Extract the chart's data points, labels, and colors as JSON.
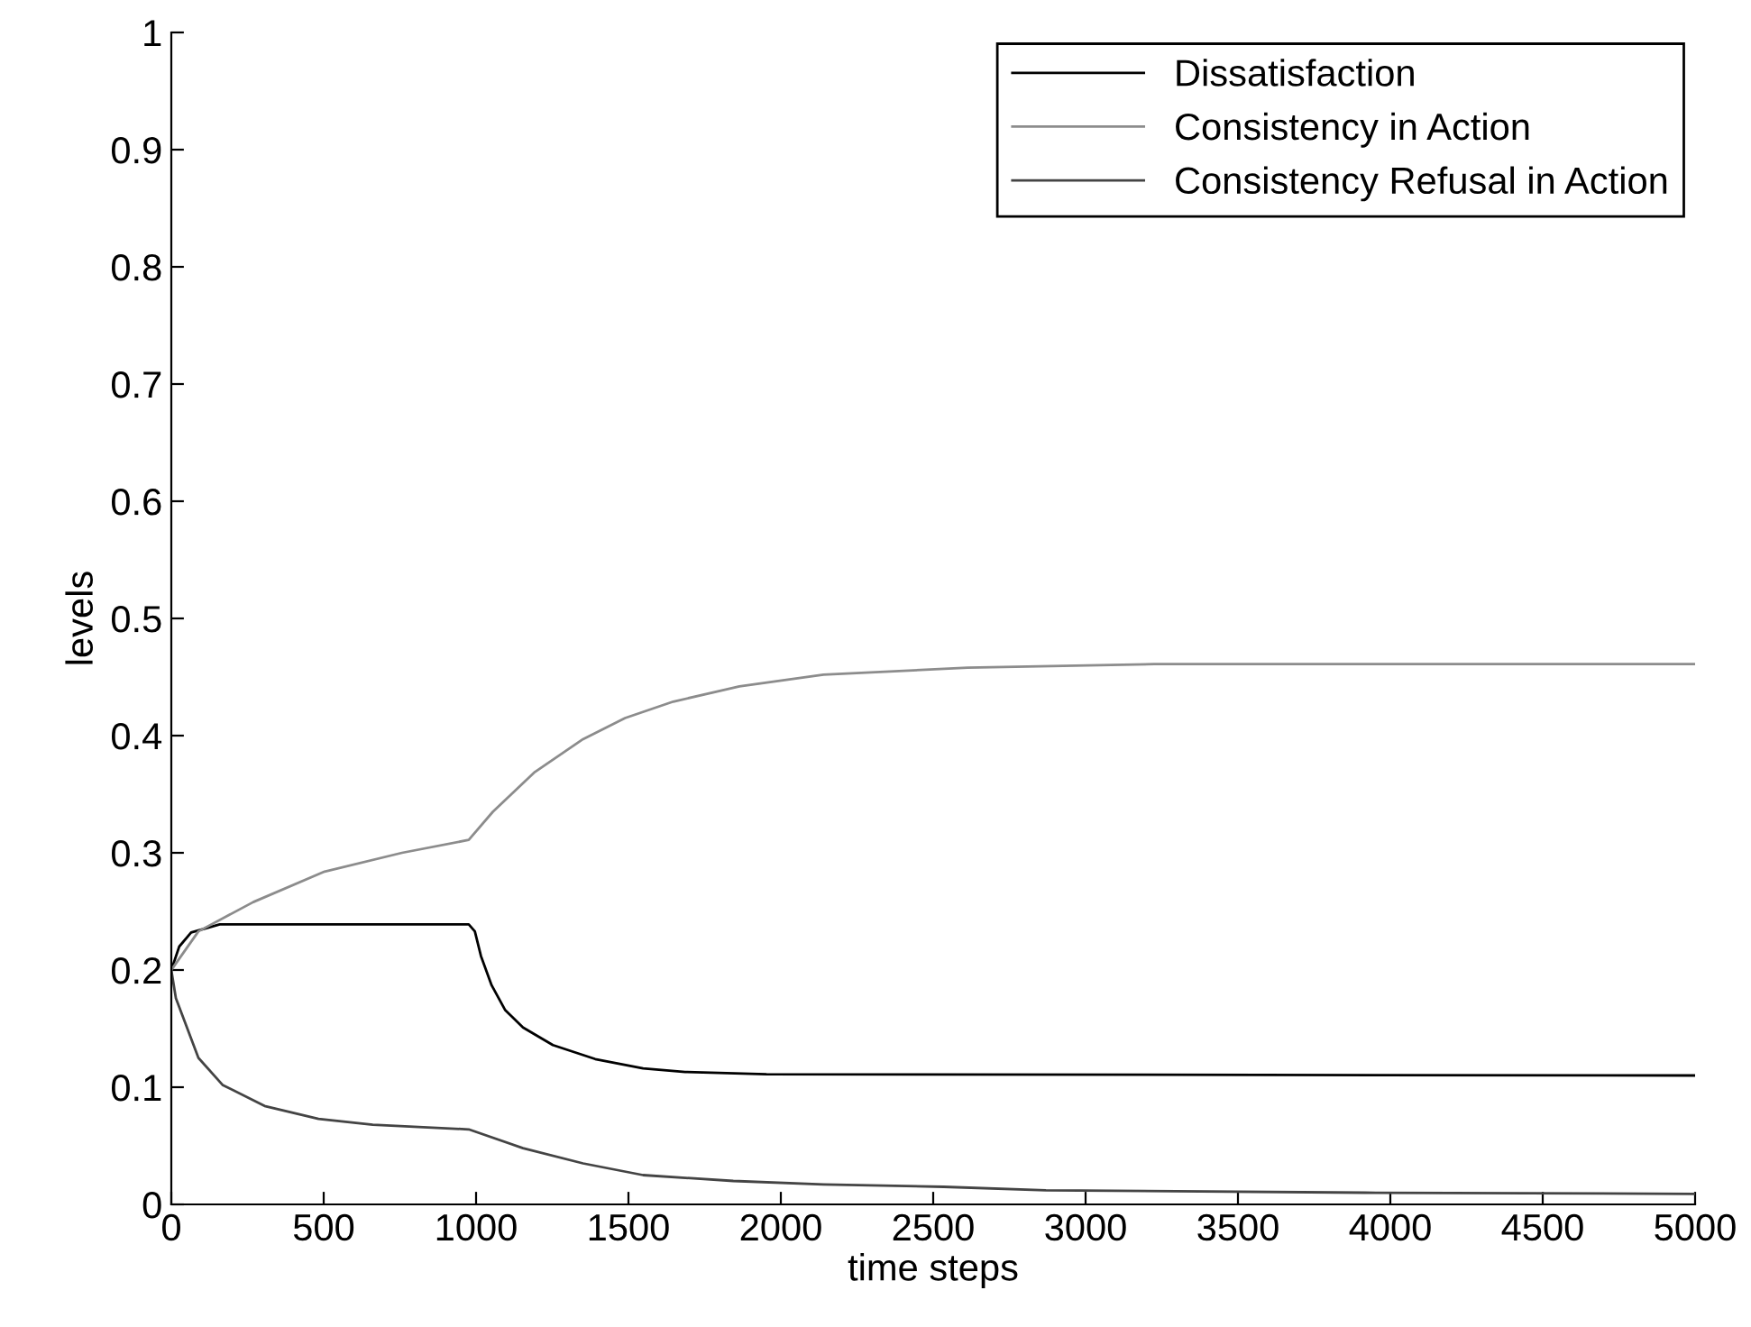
{
  "chart_data": {
    "type": "line",
    "xlabel": "time steps",
    "ylabel": "levels",
    "xlim": [
      0,
      5000
    ],
    "ylim": [
      0,
      1
    ],
    "xticks": [
      0,
      500,
      1000,
      1500,
      2000,
      2500,
      3000,
      3500,
      4000,
      4500,
      5000
    ],
    "yticks": [
      0,
      {
        "value": 0.1,
        "label": "0.1"
      },
      {
        "value": 0.2,
        "label": "0.2"
      },
      {
        "value": 0.3,
        "label": "0.3"
      },
      {
        "value": 0.4,
        "label": "0.4"
      },
      {
        "value": 0.5,
        "label": "0.5"
      },
      {
        "value": 0.6,
        "label": "0.6"
      },
      {
        "value": 0.7,
        "label": "0.7"
      },
      {
        "value": 0.8,
        "label": "0.8"
      },
      {
        "value": 0.9,
        "label": "0.9"
      },
      1
    ],
    "legend": "top right",
    "grid": false,
    "marker": "none",
    "line_style": "solid",
    "series": [
      {
        "name": "Dissatisfaction",
        "color": "#000000",
        "x": [
          0,
          26,
          65,
          159,
          976,
          996,
          1016,
          1051,
          1095,
          1154,
          1252,
          1391,
          1548,
          1686,
          1953,
          5000
        ],
        "values": [
          0.2,
          0.22,
          0.232,
          0.239,
          0.239,
          0.233,
          0.212,
          0.187,
          0.166,
          0.151,
          0.136,
          0.124,
          0.116,
          0.113,
          0.111,
          0.11
        ]
      },
      {
        "name": "Consistency in Action",
        "color": "#8c8c8c",
        "x": [
          0,
          89,
          269,
          503,
          757,
          976,
          1055,
          1193,
          1351,
          1489,
          1647,
          1864,
          2140,
          2613,
          3225,
          5000
        ],
        "values": [
          0.2,
          0.233,
          0.258,
          0.284,
          0.3,
          0.311,
          0.335,
          0.369,
          0.397,
          0.415,
          0.429,
          0.442,
          0.452,
          0.458,
          0.461,
          0.461
        ]
      },
      {
        "name": "Consistency Refusal in Action",
        "color": "#444444",
        "x": [
          0,
          15,
          89,
          168,
          306,
          483,
          661,
          976,
          1154,
          1351,
          1548,
          1844,
          2140,
          2534,
          2870,
          3916,
          5000
        ],
        "values": [
          0.2,
          0.176,
          0.125,
          0.102,
          0.084,
          0.073,
          0.068,
          0.064,
          0.048,
          0.035,
          0.025,
          0.02,
          0.017,
          0.015,
          0.012,
          0.01,
          0.009
        ]
      }
    ]
  }
}
